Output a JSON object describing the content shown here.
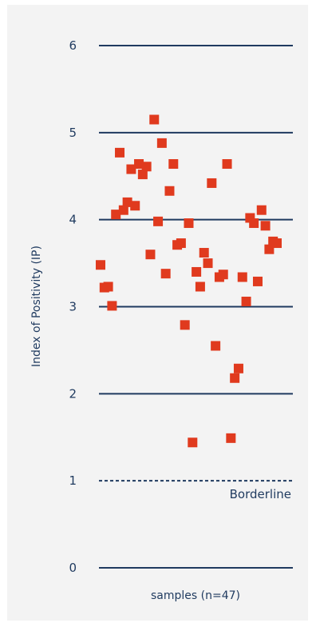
{
  "chart_data": {
    "type": "scatter",
    "ylabel": "Index of Positivity (IP)",
    "xlabel": "samples (n=47)",
    "ylim": [
      0,
      6
    ],
    "y_ticks": [
      "0",
      "1",
      "2",
      "3",
      "4",
      "5",
      "6"
    ],
    "grid": true,
    "marker_color": "#e03a1e",
    "gridline_color": "#1f3a5f",
    "reference_line": {
      "y": 1,
      "label": "Borderline",
      "style": "dashed"
    },
    "points": [
      {
        "x": 1,
        "y": 3.48
      },
      {
        "x": 2,
        "y": 3.22
      },
      {
        "x": 3,
        "y": 3.23
      },
      {
        "x": 4,
        "y": 3.01
      },
      {
        "x": 5,
        "y": 4.06
      },
      {
        "x": 6,
        "y": 4.77
      },
      {
        "x": 7,
        "y": 4.11
      },
      {
        "x": 8,
        "y": 4.2
      },
      {
        "x": 9,
        "y": 4.58
      },
      {
        "x": 10,
        "y": 4.16
      },
      {
        "x": 11,
        "y": 4.64
      },
      {
        "x": 12,
        "y": 4.52
      },
      {
        "x": 13,
        "y": 4.61
      },
      {
        "x": 14,
        "y": 3.6
      },
      {
        "x": 15,
        "y": 5.15
      },
      {
        "x": 16,
        "y": 3.98
      },
      {
        "x": 17,
        "y": 4.88
      },
      {
        "x": 18,
        "y": 3.38
      },
      {
        "x": 19,
        "y": 4.33
      },
      {
        "x": 20,
        "y": 4.64
      },
      {
        "x": 21,
        "y": 3.71
      },
      {
        "x": 22,
        "y": 3.73
      },
      {
        "x": 23,
        "y": 2.79
      },
      {
        "x": 24,
        "y": 3.96
      },
      {
        "x": 25,
        "y": 1.44
      },
      {
        "x": 26,
        "y": 3.4
      },
      {
        "x": 27,
        "y": 3.23
      },
      {
        "x": 28,
        "y": 3.62
      },
      {
        "x": 29,
        "y": 3.5
      },
      {
        "x": 30,
        "y": 4.42
      },
      {
        "x": 31,
        "y": 2.55
      },
      {
        "x": 32,
        "y": 3.34
      },
      {
        "x": 33,
        "y": 3.37
      },
      {
        "x": 34,
        "y": 4.64
      },
      {
        "x": 35,
        "y": 1.49
      },
      {
        "x": 36,
        "y": 2.18
      },
      {
        "x": 37,
        "y": 2.29
      },
      {
        "x": 38,
        "y": 3.34
      },
      {
        "x": 39,
        "y": 3.06
      },
      {
        "x": 40,
        "y": 4.02
      },
      {
        "x": 41,
        "y": 3.96
      },
      {
        "x": 42,
        "y": 3.29
      },
      {
        "x": 43,
        "y": 4.11
      },
      {
        "x": 44,
        "y": 3.93
      },
      {
        "x": 45,
        "y": 3.66
      },
      {
        "x": 46,
        "y": 3.75
      },
      {
        "x": 47,
        "y": 3.73
      }
    ]
  }
}
